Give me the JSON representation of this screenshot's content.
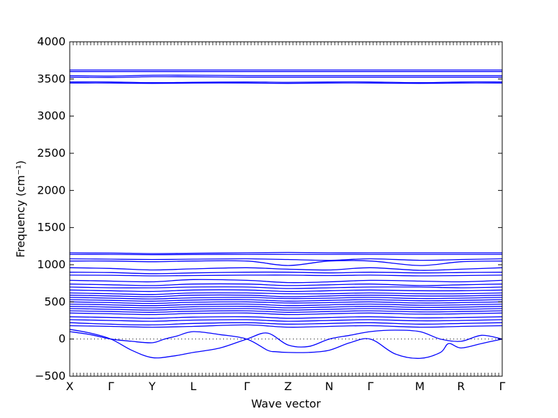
{
  "chart_data": {
    "type": "line",
    "xlabel": "Wave vector",
    "ylabel": "Frequency (cm⁻¹)",
    "ylim": [
      -500,
      4000
    ],
    "yticks": [
      -500,
      0,
      500,
      1000,
      1500,
      2000,
      2500,
      3000,
      3500,
      4000
    ],
    "x_ticks": [
      {
        "label": "X",
        "pos": 0.0
      },
      {
        "label": "Γ",
        "pos": 1.0
      },
      {
        "label": "Y",
        "pos": 2.0
      },
      {
        "label": "L",
        "pos": 3.0
      },
      {
        "label": "Γ",
        "pos": 4.3
      },
      {
        "label": "Z",
        "pos": 5.3
      },
      {
        "label": "N",
        "pos": 6.3
      },
      {
        "label": "Γ",
        "pos": 7.3
      },
      {
        "label": "M",
        "pos": 8.5
      },
      {
        "label": "R",
        "pos": 9.5
      },
      {
        "label": "Γ",
        "pos": 10.5
      }
    ],
    "xlim": [
      0,
      10.5
    ],
    "zero_line": "dotted",
    "color": "#0000ff",
    "series": [
      {
        "x": [
          0,
          1,
          2,
          3,
          4.3,
          5.3,
          6.3,
          7.3,
          8.5,
          9.5,
          10.5
        ],
        "values": [
          3620,
          3620,
          3620,
          3620,
          3620,
          3620,
          3620,
          3620,
          3620,
          3620,
          3620
        ]
      },
      {
        "x": [
          0,
          1,
          2,
          3,
          4.3,
          5.3,
          6.3,
          7.3,
          8.5,
          9.5,
          10.5
        ],
        "values": [
          3600,
          3600,
          3600,
          3600,
          3600,
          3600,
          3600,
          3600,
          3600,
          3600,
          3600
        ]
      },
      {
        "x": [
          0,
          1,
          2,
          3,
          4.3,
          5.3,
          6.3,
          7.3,
          8.5,
          9.5,
          10.5
        ],
        "values": [
          3545,
          3540,
          3550,
          3550,
          3545,
          3545,
          3545,
          3545,
          3545,
          3545,
          3545
        ]
      },
      {
        "x": [
          0,
          1,
          2,
          3,
          4.3,
          5.3,
          6.3,
          7.3,
          8.5,
          9.5,
          10.5
        ],
        "values": [
          3525,
          3520,
          3530,
          3528,
          3525,
          3525,
          3525,
          3525,
          3525,
          3525,
          3525
        ]
      },
      {
        "x": [
          0,
          1,
          2,
          3,
          4.3,
          5.3,
          6.3,
          7.3,
          8.5,
          9.5,
          10.5
        ],
        "values": [
          3460,
          3460,
          3450,
          3455,
          3460,
          3455,
          3460,
          3460,
          3450,
          3460,
          3460
        ]
      },
      {
        "x": [
          0,
          1,
          2,
          3,
          4.3,
          5.3,
          6.3,
          7.3,
          8.5,
          9.5,
          10.5
        ],
        "values": [
          3445,
          3445,
          3440,
          3445,
          3445,
          3440,
          3445,
          3445,
          3440,
          3445,
          3445
        ]
      },
      {
        "x": [
          0,
          1,
          2,
          3,
          4.3,
          5.3,
          6.3,
          7.3,
          8.5,
          9.5,
          10.5
        ],
        "values": [
          1160,
          1158,
          1150,
          1155,
          1160,
          1165,
          1160,
          1160,
          1160,
          1160,
          1160
        ]
      },
      {
        "x": [
          0,
          1,
          2,
          3,
          4.3,
          5.3,
          6.3,
          7.3,
          8.5,
          9.5,
          10.5
        ],
        "values": [
          1140,
          1140,
          1135,
          1138,
          1140,
          1140,
          1140,
          1140,
          1140,
          1140,
          1140
        ]
      },
      {
        "x": [
          0,
          1,
          2,
          3,
          4.3,
          5.3,
          6.3,
          7.3,
          8.5,
          9.5,
          10.5
        ],
        "values": [
          1080,
          1075,
          1070,
          1075,
          1080,
          1070,
          1060,
          1080,
          1060,
          1070,
          1080
        ]
      },
      {
        "x": [
          0,
          1,
          2,
          3,
          4.3,
          5.3,
          6.3,
          7.3,
          8.5,
          9.5,
          10.5
        ],
        "values": [
          1050,
          1050,
          1040,
          1050,
          1050,
          990,
          1050,
          1050,
          990,
          1040,
          1050
        ]
      },
      {
        "x": [
          0,
          1,
          2,
          3,
          4.3,
          5.3,
          6.3,
          7.3,
          8.5,
          9.5,
          10.5
        ],
        "values": [
          960,
          950,
          930,
          945,
          960,
          940,
          930,
          960,
          925,
          940,
          960
        ]
      },
      {
        "x": [
          0,
          1,
          2,
          3,
          4.3,
          5.3,
          6.3,
          7.3,
          8.5,
          9.5,
          10.5
        ],
        "values": [
          900,
          895,
          880,
          890,
          900,
          900,
          890,
          900,
          890,
          895,
          900
        ]
      },
      {
        "x": [
          0,
          1,
          2,
          3,
          4.3,
          5.3,
          6.3,
          7.3,
          8.5,
          9.5,
          10.5
        ],
        "values": [
          860,
          858,
          850,
          855,
          860,
          860,
          855,
          860,
          850,
          855,
          860
        ]
      },
      {
        "x": [
          0,
          1,
          2,
          3,
          4.3,
          5.3,
          6.3,
          7.3,
          8.5,
          9.5,
          10.5
        ],
        "values": [
          790,
          780,
          770,
          800,
          790,
          760,
          770,
          790,
          780,
          770,
          790
        ]
      },
      {
        "x": [
          0,
          1,
          2,
          3,
          4.3,
          5.3,
          6.3,
          7.3,
          8.5,
          9.5,
          10.5
        ],
        "values": [
          740,
          730,
          720,
          740,
          740,
          720,
          730,
          740,
          720,
          730,
          740
        ]
      },
      {
        "x": [
          0,
          1,
          2,
          3,
          4.3,
          5.3,
          6.3,
          7.3,
          8.5,
          9.5,
          10.5
        ],
        "values": [
          700,
          690,
          690,
          700,
          700,
          680,
          690,
          700,
          700,
          690,
          700
        ]
      },
      {
        "x": [
          0,
          1,
          2,
          3,
          4.3,
          5.3,
          6.3,
          7.3,
          8.5,
          9.5,
          10.5
        ],
        "values": [
          660,
          650,
          640,
          660,
          660,
          640,
          650,
          660,
          650,
          650,
          660
        ]
      },
      {
        "x": [
          0,
          1,
          2,
          3,
          4.3,
          5.3,
          6.3,
          7.3,
          8.5,
          9.5,
          10.5
        ],
        "values": [
          620,
          610,
          600,
          620,
          620,
          610,
          610,
          620,
          610,
          610,
          620
        ]
      },
      {
        "x": [
          0,
          1,
          2,
          3,
          4.3,
          5.3,
          6.3,
          7.3,
          8.5,
          9.5,
          10.5
        ],
        "values": [
          590,
          580,
          570,
          590,
          590,
          570,
          580,
          590,
          580,
          580,
          590
        ]
      },
      {
        "x": [
          0,
          1,
          2,
          3,
          4.3,
          5.3,
          6.3,
          7.3,
          8.5,
          9.5,
          10.5
        ],
        "values": [
          560,
          550,
          540,
          555,
          560,
          545,
          550,
          560,
          545,
          550,
          560
        ]
      },
      {
        "x": [
          0,
          1,
          2,
          3,
          4.3,
          5.3,
          6.3,
          7.3,
          8.5,
          9.5,
          10.5
        ],
        "values": [
          530,
          520,
          510,
          525,
          530,
          510,
          520,
          530,
          515,
          520,
          530
        ]
      },
      {
        "x": [
          0,
          1,
          2,
          3,
          4.3,
          5.3,
          6.3,
          7.3,
          8.5,
          9.5,
          10.5
        ],
        "values": [
          500,
          490,
          480,
          495,
          500,
          485,
          490,
          500,
          485,
          490,
          500
        ]
      },
      {
        "x": [
          0,
          1,
          2,
          3,
          4.3,
          5.3,
          6.3,
          7.3,
          8.5,
          9.5,
          10.5
        ],
        "values": [
          470,
          460,
          450,
          465,
          470,
          450,
          460,
          470,
          455,
          460,
          470
        ]
      },
      {
        "x": [
          0,
          1,
          2,
          3,
          4.3,
          5.3,
          6.3,
          7.3,
          8.5,
          9.5,
          10.5
        ],
        "values": [
          440,
          430,
          420,
          435,
          440,
          420,
          430,
          440,
          425,
          430,
          440
        ]
      },
      {
        "x": [
          0,
          1,
          2,
          3,
          4.3,
          5.3,
          6.3,
          7.3,
          8.5,
          9.5,
          10.5
        ],
        "values": [
          410,
          400,
          390,
          405,
          410,
          390,
          400,
          410,
          395,
          400,
          410
        ]
      },
      {
        "x": [
          0,
          1,
          2,
          3,
          4.3,
          5.3,
          6.3,
          7.3,
          8.5,
          9.5,
          10.5
        ],
        "values": [
          380,
          370,
          360,
          375,
          380,
          360,
          370,
          380,
          365,
          370,
          380
        ]
      },
      {
        "x": [
          0,
          1,
          2,
          3,
          4.3,
          5.3,
          6.3,
          7.3,
          8.5,
          9.5,
          10.5
        ],
        "values": [
          350,
          340,
          330,
          345,
          350,
          330,
          340,
          350,
          335,
          340,
          350
        ]
      },
      {
        "x": [
          0,
          1,
          2,
          3,
          4.3,
          5.3,
          6.3,
          7.3,
          8.5,
          9.5,
          10.5
        ],
        "values": [
          300,
          290,
          280,
          295,
          300,
          280,
          290,
          300,
          285,
          290,
          300
        ]
      },
      {
        "x": [
          0,
          1,
          2,
          3,
          4.3,
          5.3,
          6.3,
          7.3,
          8.5,
          9.5,
          10.5
        ],
        "values": [
          260,
          250,
          240,
          255,
          260,
          240,
          250,
          260,
          245,
          250,
          260
        ]
      },
      {
        "x": [
          0,
          1,
          2,
          3,
          4.3,
          5.3,
          6.3,
          7.3,
          8.5,
          9.5,
          10.5
        ],
        "values": [
          220,
          200,
          190,
          210,
          220,
          200,
          210,
          220,
          200,
          210,
          220
        ]
      },
      {
        "x": [
          0,
          1,
          2,
          3,
          4.3,
          5.3,
          6.3,
          7.3,
          8.5,
          9.5,
          10.5
        ],
        "values": [
          180,
          170,
          160,
          170,
          190,
          160,
          170,
          180,
          160,
          170,
          180
        ]
      },
      {
        "x": [
          0,
          0.5,
          1,
          1.5,
          2,
          2.5,
          3,
          3.65,
          4.3,
          4.8,
          5.3,
          5.8,
          6.3,
          6.8,
          7.3,
          7.9,
          8.5,
          9.0,
          9.5,
          10.0,
          10.5
        ],
        "values": [
          130,
          80,
          0,
          -150,
          -250,
          -230,
          -180,
          -120,
          0,
          80,
          -80,
          -100,
          0,
          50,
          100,
          120,
          100,
          0,
          -30,
          50,
          0
        ]
      },
      {
        "x": [
          0,
          0.5,
          1,
          1.5,
          2,
          2.3,
          2.6,
          3,
          3.65,
          4.3,
          4.8,
          5.0,
          5.3,
          5.8,
          6.3,
          6.8,
          7.3,
          7.9,
          8.5,
          9.0,
          9.2,
          9.5,
          10.0,
          10.5
        ],
        "values": [
          100,
          60,
          0,
          -30,
          -50,
          0,
          40,
          100,
          60,
          0,
          -150,
          -170,
          -180,
          -180,
          -150,
          -50,
          0,
          -200,
          -260,
          -180,
          -60,
          -120,
          -60,
          0
        ]
      }
    ]
  }
}
